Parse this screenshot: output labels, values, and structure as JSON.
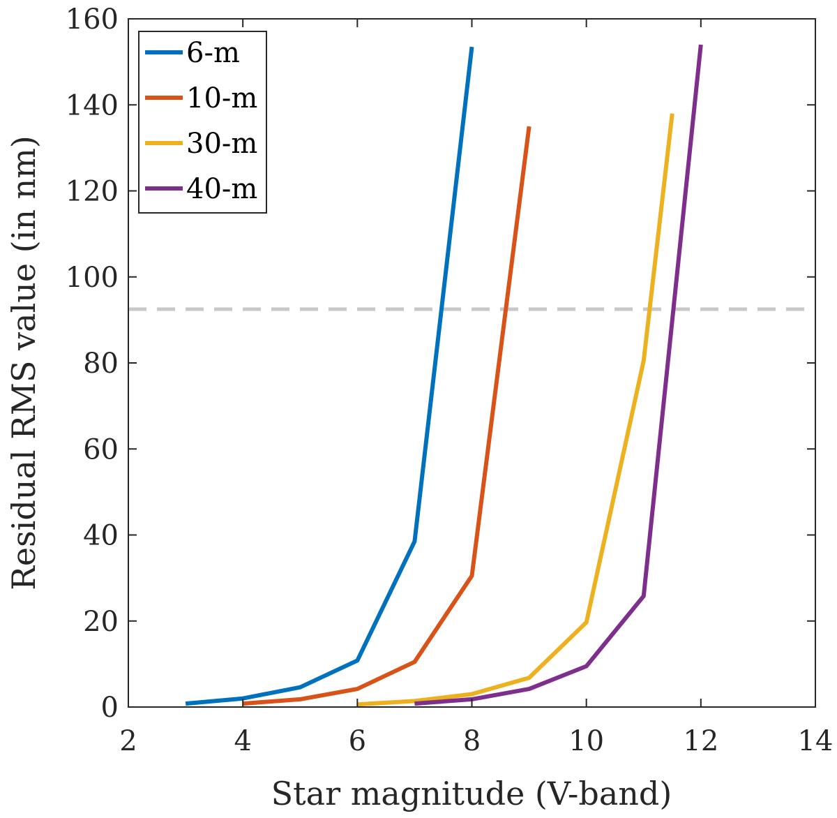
{
  "chart_data": {
    "type": "line",
    "title": "",
    "xlabel": "Star magnitude (V-band)",
    "ylabel": "Residual RMS value (in nm)",
    "xlim": [
      2,
      14
    ],
    "ylim": [
      0,
      160
    ],
    "xticks": [
      2,
      4,
      6,
      8,
      10,
      12,
      14
    ],
    "yticks": [
      0,
      20,
      40,
      60,
      80,
      100,
      120,
      140,
      160
    ],
    "grid": false,
    "legend_position": "top-left",
    "threshold": {
      "y": 92.5,
      "style": "dashed",
      "color": "#c8c8c8"
    },
    "series": [
      {
        "name": "6-m",
        "color": "#0072BD",
        "x": [
          3,
          4,
          5,
          6,
          7,
          8
        ],
        "y": [
          0.8,
          2.0,
          4.6,
          10.8,
          38.5,
          153.5
        ]
      },
      {
        "name": "10-m",
        "color": "#D95319",
        "x": [
          4,
          5,
          6,
          7,
          8,
          9
        ],
        "y": [
          0.8,
          1.8,
          4.2,
          10.5,
          30.5,
          135
        ]
      },
      {
        "name": "30-m",
        "color": "#EDB120",
        "x": [
          6,
          7,
          8,
          9,
          10,
          11,
          11.5
        ],
        "y": [
          0.6,
          1.4,
          3.0,
          6.8,
          19.7,
          80.5,
          138
        ]
      },
      {
        "name": "40-m",
        "color": "#7E2F8E",
        "x": [
          7,
          8,
          9,
          10,
          11,
          12
        ],
        "y": [
          0.8,
          1.8,
          4.2,
          9.5,
          25.8,
          154
        ]
      }
    ]
  }
}
